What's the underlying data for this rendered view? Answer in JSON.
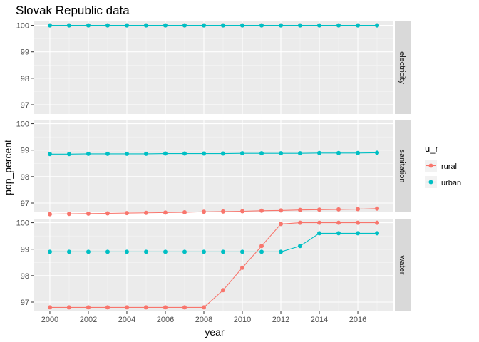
{
  "chart_data": {
    "type": "line",
    "title": "Slovak Republic data",
    "xlabel": "year",
    "ylabel": "pop_percent",
    "legend": {
      "title": "u_r",
      "position": "right",
      "entries": [
        "rural",
        "urban"
      ]
    },
    "colors": {
      "rural": "#F8766D",
      "urban": "#00BFC4",
      "panel_bg": "#EBEBEB",
      "strip_bg": "#D9D9D9"
    },
    "x": [
      2000,
      2001,
      2002,
      2003,
      2004,
      2005,
      2006,
      2007,
      2008,
      2009,
      2010,
      2011,
      2012,
      2013,
      2014,
      2015,
      2016,
      2017
    ],
    "x_ticks": [
      "2000",
      "2002",
      "2004",
      "2006",
      "2008",
      "2010",
      "2012",
      "2014",
      "2016"
    ],
    "ylim": [
      96.65,
      100.15
    ],
    "y_ticks": [
      "97",
      "98",
      "99",
      "100"
    ],
    "grid": true,
    "facets": [
      {
        "label": "electricity",
        "series": [
          {
            "name": "rural",
            "values": [
              100,
              100,
              100,
              100,
              100,
              100,
              100,
              100,
              100,
              100,
              100,
              100,
              100,
              100,
              100,
              100,
              100,
              100
            ]
          },
          {
            "name": "urban",
            "values": [
              100,
              100,
              100,
              100,
              100,
              100,
              100,
              100,
              100,
              100,
              100,
              100,
              100,
              100,
              100,
              100,
              100,
              100
            ]
          }
        ]
      },
      {
        "label": "sanitation",
        "series": [
          {
            "name": "rural",
            "values": [
              96.58,
              96.59,
              96.6,
              96.61,
              96.62,
              96.63,
              96.64,
              96.65,
              96.67,
              96.68,
              96.69,
              96.71,
              96.72,
              96.74,
              96.75,
              96.76,
              96.77,
              96.79
            ]
          },
          {
            "name": "urban",
            "values": [
              98.85,
              98.85,
              98.86,
              98.86,
              98.86,
              98.86,
              98.87,
              98.87,
              98.87,
              98.87,
              98.88,
              98.88,
              98.88,
              98.88,
              98.89,
              98.89,
              98.89,
              98.9
            ]
          }
        ]
      },
      {
        "label": "water",
        "series": [
          {
            "name": "rural",
            "values": [
              96.8,
              96.8,
              96.8,
              96.8,
              96.8,
              96.8,
              96.8,
              96.8,
              96.8,
              97.45,
              98.3,
              99.12,
              99.95,
              100,
              100,
              100,
              100,
              100
            ]
          },
          {
            "name": "urban",
            "values": [
              98.9,
              98.9,
              98.9,
              98.9,
              98.9,
              98.9,
              98.9,
              98.9,
              98.9,
              98.9,
              98.9,
              98.9,
              98.9,
              99.12,
              99.6,
              99.6,
              99.6,
              99.6
            ]
          }
        ]
      }
    ]
  }
}
